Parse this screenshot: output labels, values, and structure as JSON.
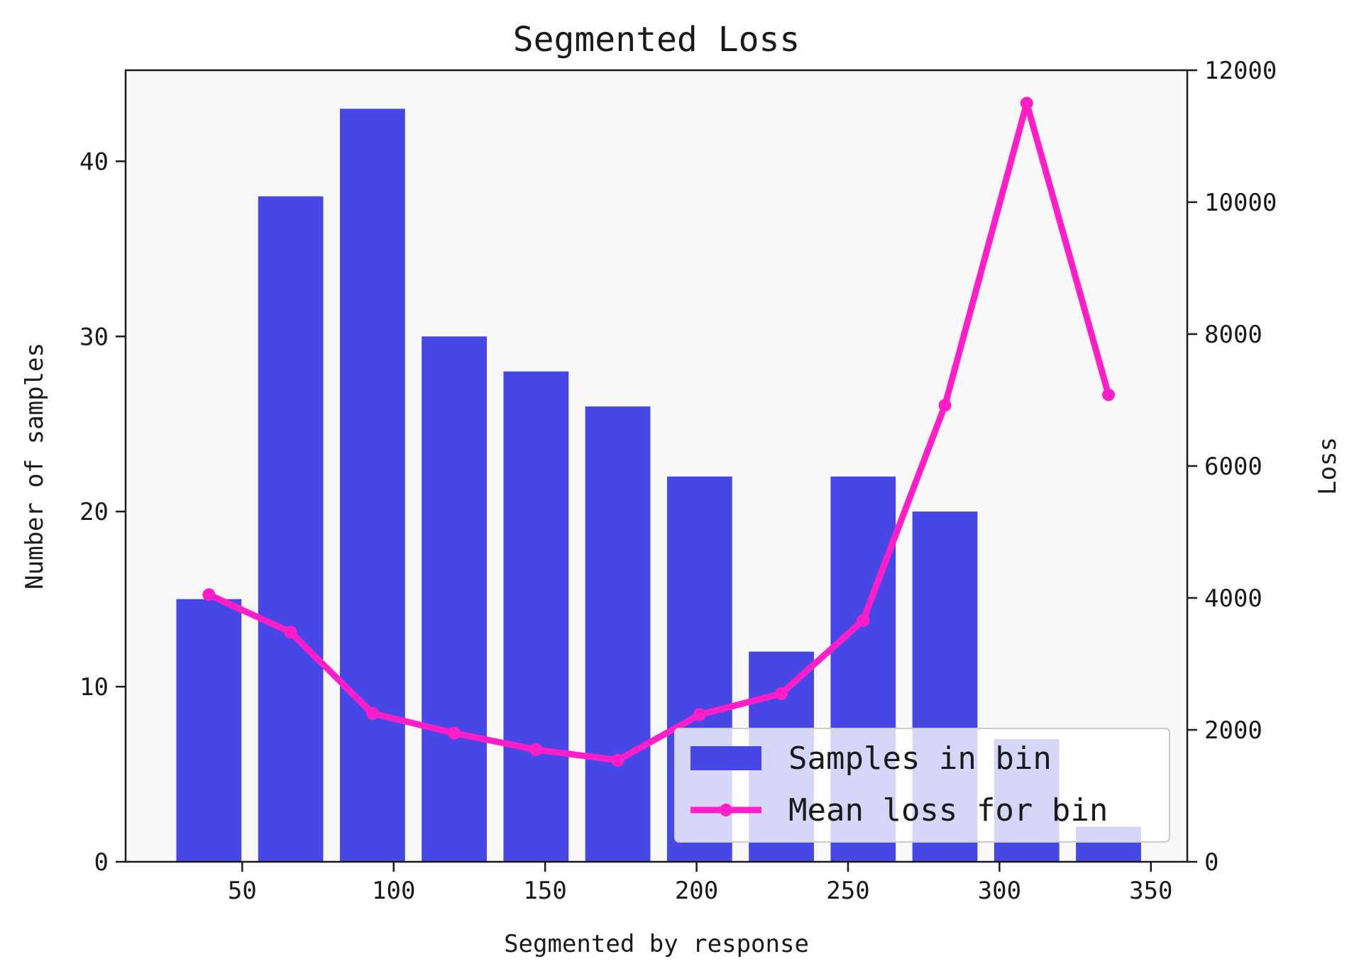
{
  "chart_data": {
    "type": "bar+line",
    "title": "Segmented Loss",
    "xlabel": "Segmented by response",
    "ylabel_left": "Number of samples",
    "ylabel_right": "Loss",
    "xlim": [
      11.5,
      362
    ],
    "ylim_left": [
      0,
      45.2
    ],
    "ylim_right": [
      0,
      12000
    ],
    "xticks": [
      50,
      100,
      150,
      200,
      250,
      300,
      350
    ],
    "yticks_left": [
      0,
      10,
      20,
      30,
      40
    ],
    "yticks_right": [
      0,
      2000,
      4000,
      6000,
      8000,
      10000,
      12000
    ],
    "bar_width": 21.5,
    "grid": false,
    "legend_position": "lower right",
    "colors": {
      "bars": "#4647e4",
      "line": "#ff1ec8",
      "plot_background": "#f8f8f8"
    },
    "series": [
      {
        "name": "Samples in bin",
        "kind": "bar",
        "axis": "left",
        "x": [
          39,
          66,
          93,
          120,
          147,
          174,
          201,
          228,
          255,
          282,
          309,
          336
        ],
        "values": [
          15,
          38,
          43,
          30,
          28,
          26,
          22,
          12,
          22,
          20,
          7,
          2
        ]
      },
      {
        "name": "Mean loss for bin",
        "kind": "line",
        "axis": "right",
        "x": [
          39,
          66,
          93,
          120,
          147,
          174,
          201,
          228,
          255,
          282,
          309,
          336
        ],
        "values": [
          4050,
          3480,
          2250,
          1950,
          1700,
          1540,
          2230,
          2550,
          3660,
          6920,
          11500,
          7080
        ]
      }
    ]
  }
}
